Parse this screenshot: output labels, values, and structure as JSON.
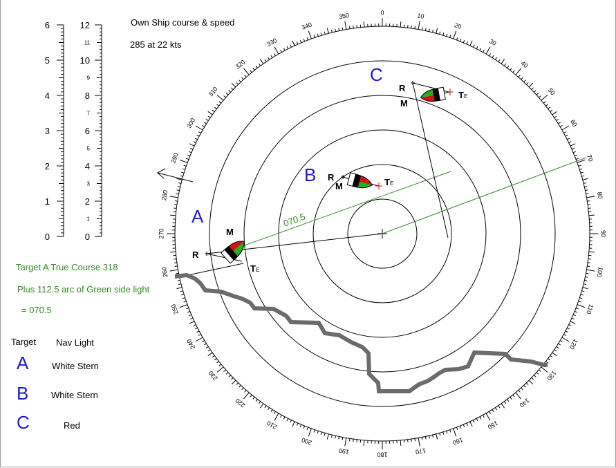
{
  "own_ship": {
    "heading": "Own Ship course & speed",
    "value": "285  at 22 kts"
  },
  "scales": {
    "left_labels": [
      "0",
      "1",
      "2",
      "3",
      "4",
      "5",
      "6"
    ],
    "right_major_labels": [
      "0",
      "2",
      "4",
      "6",
      "8",
      "10",
      "12"
    ],
    "right_minor_labels": [
      "1",
      "3",
      "5",
      "7",
      "9",
      "11"
    ]
  },
  "compass": {
    "bearing_labels_every_10_deg": true,
    "range_rings": 5
  },
  "solution_text": {
    "line1": "Target A True  Course 318",
    "line2": "Plus 112.5 arc of Green side light",
    "line3": "= 070.5",
    "bearing_label": "070.5"
  },
  "markers": {
    "relative": "R",
    "own_motion": "M",
    "true": "T",
    "true_sub": "E"
  },
  "targets": [
    {
      "letter": "A",
      "nav_light": "White Stern"
    },
    {
      "letter": "B",
      "nav_light": "White Stern"
    },
    {
      "letter": "C",
      "nav_light": "Red"
    }
  ],
  "table": {
    "target_header": "Target",
    "light_header": "Nav Light"
  },
  "colors": {
    "target_letters": "#1a1ad6",
    "solution_green": "#2e8b1f",
    "green_light": "#1fb21f",
    "red_light": "#d21414",
    "coastline": "#6b6b6b"
  }
}
